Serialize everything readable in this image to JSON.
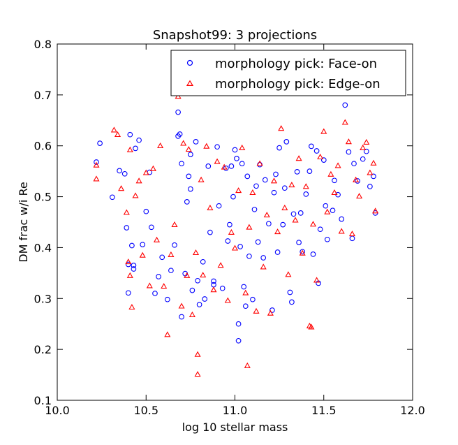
{
  "chart_data": {
    "type": "scatter",
    "title": "Snapshot99: 3 projections",
    "xlabel": "log 10 stellar mass",
    "ylabel": "DM frac w/i Re",
    "xlim": [
      10.0,
      12.0
    ],
    "ylim": [
      0.1,
      0.8
    ],
    "xticks": [
      "10.0",
      "10.5",
      "11.0",
      "11.5",
      "12.0"
    ],
    "yticks": [
      "0.1",
      "0.2",
      "0.3",
      "0.4",
      "0.5",
      "0.6",
      "0.7",
      "0.8"
    ],
    "grid": false,
    "legend_position": "top-right",
    "series": [
      {
        "name": "morphology pick: Face-on",
        "marker": "circle",
        "color": "#0000ff",
        "points": [
          [
            10.22,
            0.568
          ],
          [
            10.24,
            0.605
          ],
          [
            10.31,
            0.499
          ],
          [
            10.35,
            0.551
          ],
          [
            10.38,
            0.545
          ],
          [
            10.39,
            0.439
          ],
          [
            10.4,
            0.367
          ],
          [
            10.4,
            0.311
          ],
          [
            10.41,
            0.622
          ],
          [
            10.42,
            0.404
          ],
          [
            10.43,
            0.365
          ],
          [
            10.43,
            0.358
          ],
          [
            10.44,
            0.595
          ],
          [
            10.46,
            0.611
          ],
          [
            10.48,
            0.406
          ],
          [
            10.5,
            0.471
          ],
          [
            10.52,
            0.548
          ],
          [
            10.53,
            0.44
          ],
          [
            10.55,
            0.31
          ],
          [
            10.57,
            0.343
          ],
          [
            10.59,
            0.381
          ],
          [
            10.62,
            0.298
          ],
          [
            10.64,
            0.355
          ],
          [
            10.66,
            0.405
          ],
          [
            10.68,
            0.619
          ],
          [
            10.68,
            0.666
          ],
          [
            10.69,
            0.623
          ],
          [
            10.7,
            0.565
          ],
          [
            10.7,
            0.264
          ],
          [
            10.72,
            0.349
          ],
          [
            10.73,
            0.49
          ],
          [
            10.74,
            0.54
          ],
          [
            10.75,
            0.583
          ],
          [
            10.75,
            0.515
          ],
          [
            10.76,
            0.316
          ],
          [
            10.78,
            0.608
          ],
          [
            10.79,
            0.335
          ],
          [
            10.8,
            0.288
          ],
          [
            10.82,
            0.372
          ],
          [
            10.83,
            0.299
          ],
          [
            10.85,
            0.56
          ],
          [
            10.86,
            0.43
          ],
          [
            10.88,
            0.334
          ],
          [
            10.88,
            0.327
          ],
          [
            10.9,
            0.598
          ],
          [
            10.91,
            0.482
          ],
          [
            10.93,
            0.32
          ],
          [
            10.95,
            0.556
          ],
          [
            10.96,
            0.413
          ],
          [
            10.97,
            0.445
          ],
          [
            10.98,
            0.56
          ],
          [
            10.99,
            0.5
          ],
          [
            11.0,
            0.592
          ],
          [
            11.01,
            0.575
          ],
          [
            11.02,
            0.25
          ],
          [
            11.02,
            0.217
          ],
          [
            11.03,
            0.402
          ],
          [
            11.04,
            0.565
          ],
          [
            11.05,
            0.323
          ],
          [
            11.06,
            0.285
          ],
          [
            11.07,
            0.54
          ],
          [
            11.08,
            0.383
          ],
          [
            11.1,
            0.298
          ],
          [
            11.11,
            0.475
          ],
          [
            11.12,
            0.521
          ],
          [
            11.13,
            0.411
          ],
          [
            11.14,
            0.563
          ],
          [
            11.16,
            0.38
          ],
          [
            11.17,
            0.533
          ],
          [
            11.19,
            0.447
          ],
          [
            11.21,
            0.277
          ],
          [
            11.22,
            0.508
          ],
          [
            11.23,
            0.544
          ],
          [
            11.24,
            0.391
          ],
          [
            11.25,
            0.596
          ],
          [
            11.27,
            0.445
          ],
          [
            11.28,
            0.517
          ],
          [
            11.29,
            0.608
          ],
          [
            11.31,
            0.312
          ],
          [
            11.32,
            0.293
          ],
          [
            11.33,
            0.466
          ],
          [
            11.35,
            0.549
          ],
          [
            11.36,
            0.41
          ],
          [
            11.37,
            0.468
          ],
          [
            11.38,
            0.392
          ],
          [
            11.4,
            0.505
          ],
          [
            11.42,
            0.55
          ],
          [
            11.43,
            0.599
          ],
          [
            11.44,
            0.387
          ],
          [
            11.46,
            0.59
          ],
          [
            11.47,
            0.33
          ],
          [
            11.48,
            0.436
          ],
          [
            11.5,
            0.572
          ],
          [
            11.51,
            0.482
          ],
          [
            11.52,
            0.416
          ],
          [
            11.55,
            0.473
          ],
          [
            11.56,
            0.532
          ],
          [
            11.58,
            0.504
          ],
          [
            11.6,
            0.456
          ],
          [
            11.62,
            0.68
          ],
          [
            11.64,
            0.588
          ],
          [
            11.66,
            0.418
          ],
          [
            11.67,
            0.565
          ],
          [
            11.69,
            0.531
          ],
          [
            11.72,
            0.574
          ],
          [
            11.74,
            0.589
          ],
          [
            11.76,
            0.52
          ],
          [
            11.78,
            0.54
          ],
          [
            11.79,
            0.468
          ]
        ]
      },
      {
        "name": "morphology pick: Edge-on",
        "marker": "triangle",
        "color": "#ff0000",
        "points": [
          [
            10.22,
            0.562
          ],
          [
            10.22,
            0.535
          ],
          [
            10.32,
            0.631
          ],
          [
            10.34,
            0.622
          ],
          [
            10.36,
            0.516
          ],
          [
            10.39,
            0.469
          ],
          [
            10.4,
            0.372
          ],
          [
            10.41,
            0.345
          ],
          [
            10.41,
            0.592
          ],
          [
            10.42,
            0.283
          ],
          [
            10.44,
            0.502
          ],
          [
            10.46,
            0.531
          ],
          [
            10.48,
            0.385
          ],
          [
            10.5,
            0.547
          ],
          [
            10.52,
            0.325
          ],
          [
            10.54,
            0.555
          ],
          [
            10.56,
            0.415
          ],
          [
            10.58,
            0.6
          ],
          [
            10.6,
            0.324
          ],
          [
            10.62,
            0.229
          ],
          [
            10.64,
            0.386
          ],
          [
            10.66,
            0.445
          ],
          [
            10.68,
            0.697
          ],
          [
            10.7,
            0.285
          ],
          [
            10.71,
            0.605
          ],
          [
            10.73,
            0.345
          ],
          [
            10.74,
            0.593
          ],
          [
            10.76,
            0.268
          ],
          [
            10.78,
            0.39
          ],
          [
            10.79,
            0.19
          ],
          [
            10.79,
            0.151
          ],
          [
            10.81,
            0.533
          ],
          [
            10.82,
            0.346
          ],
          [
            10.84,
            0.599
          ],
          [
            10.86,
            0.478
          ],
          [
            10.88,
            0.317
          ],
          [
            10.9,
            0.569
          ],
          [
            10.92,
            0.365
          ],
          [
            10.94,
            0.558
          ],
          [
            10.96,
            0.296
          ],
          [
            10.98,
            0.43
          ],
          [
            11.0,
            0.399
          ],
          [
            11.02,
            0.512
          ],
          [
            11.04,
            0.596
          ],
          [
            11.06,
            0.311
          ],
          [
            11.07,
            0.168
          ],
          [
            11.08,
            0.44
          ],
          [
            11.1,
            0.508
          ],
          [
            11.12,
            0.275
          ],
          [
            11.14,
            0.565
          ],
          [
            11.16,
            0.362
          ],
          [
            11.18,
            0.464
          ],
          [
            11.2,
            0.271
          ],
          [
            11.22,
            0.531
          ],
          [
            11.24,
            0.431
          ],
          [
            11.26,
            0.634
          ],
          [
            11.28,
            0.478
          ],
          [
            11.3,
            0.347
          ],
          [
            11.32,
            0.523
          ],
          [
            11.34,
            0.454
          ],
          [
            11.36,
            0.575
          ],
          [
            11.38,
            0.389
          ],
          [
            11.4,
            0.52
          ],
          [
            11.42,
            0.246
          ],
          [
            11.43,
            0.244
          ],
          [
            11.44,
            0.446
          ],
          [
            11.46,
            0.336
          ],
          [
            11.48,
            0.578
          ],
          [
            11.5,
            0.628
          ],
          [
            11.52,
            0.47
          ],
          [
            11.54,
            0.544
          ],
          [
            11.56,
            0.508
          ],
          [
            11.58,
            0.561
          ],
          [
            11.6,
            0.432
          ],
          [
            11.62,
            0.646
          ],
          [
            11.64,
            0.608
          ],
          [
            11.66,
            0.427
          ],
          [
            11.68,
            0.533
          ],
          [
            11.7,
            0.501
          ],
          [
            11.72,
            0.596
          ],
          [
            11.74,
            0.607
          ],
          [
            11.76,
            0.547
          ],
          [
            11.78,
            0.566
          ],
          [
            11.79,
            0.472
          ]
        ]
      }
    ]
  }
}
